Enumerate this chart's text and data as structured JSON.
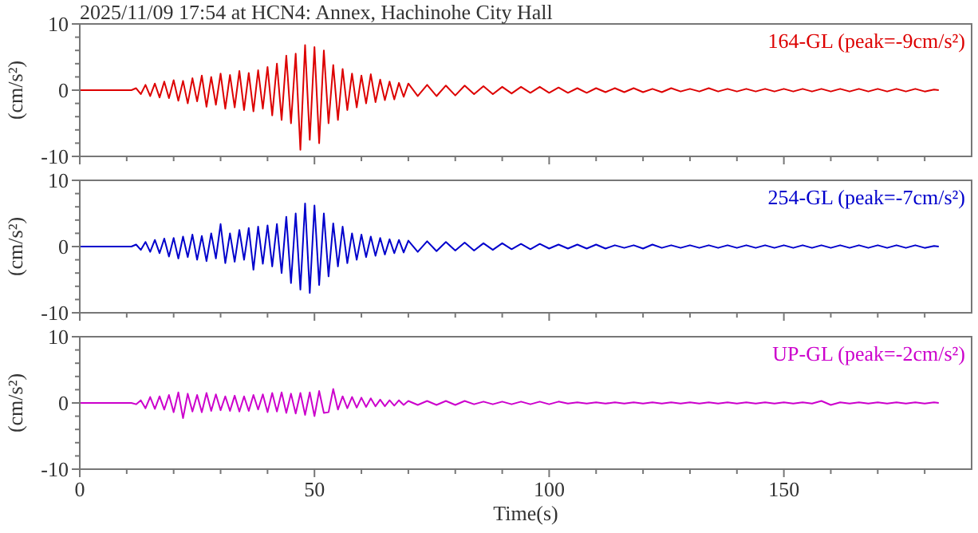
{
  "chart_data": [
    {
      "type": "line",
      "title": "2025/11/09 17:54 at HCN4: Annex, Hachinohe City Hall",
      "ylabel": "(cm/s²)",
      "tick_labels": "y",
      "x": [
        0,
        11,
        12,
        13,
        14,
        15,
        16,
        17,
        18,
        19,
        20,
        21,
        22,
        23,
        24,
        25,
        26,
        27,
        28,
        29,
        30,
        31,
        32,
        33,
        34,
        35,
        36,
        37,
        38,
        39,
        40,
        41,
        42,
        43,
        44,
        45,
        46,
        47,
        48,
        49,
        50,
        51,
        52,
        53,
        54,
        55,
        56,
        57,
        58,
        59,
        60,
        61,
        62,
        63,
        64,
        65,
        66,
        67,
        68,
        69,
        70,
        72,
        74,
        76,
        78,
        80,
        82,
        84,
        86,
        88,
        90,
        92,
        94,
        96,
        98,
        100,
        102,
        104,
        106,
        108,
        110,
        112,
        114,
        116,
        118,
        120,
        122,
        124,
        126,
        128,
        130,
        132,
        134,
        136,
        138,
        140,
        142,
        144,
        146,
        148,
        150,
        152,
        154,
        156,
        158,
        160,
        162,
        164,
        166,
        168,
        170,
        172,
        174,
        176,
        178,
        180,
        182,
        183
      ],
      "xlim": [
        0,
        190
      ],
      "ylim": [
        -10,
        10
      ],
      "xticks": [
        0,
        {
          "value": 10,
          "label": null
        },
        {
          "value": 20,
          "label": null
        },
        {
          "value": 30,
          "label": null
        },
        {
          "value": 40,
          "label": null
        },
        50,
        {
          "value": 60,
          "label": null
        },
        {
          "value": 70,
          "label": null
        },
        {
          "value": 80,
          "label": null
        },
        {
          "value": 90,
          "label": null
        },
        100,
        {
          "value": 110,
          "label": null
        },
        {
          "value": 120,
          "label": null
        },
        {
          "value": 130,
          "label": null
        },
        {
          "value": 140,
          "label": null
        },
        150,
        {
          "value": 160,
          "label": null
        },
        {
          "value": 170,
          "label": null
        },
        {
          "value": 180,
          "label": null
        }
      ],
      "yticks": [
        -10,
        {
          "value": -8,
          "label": null
        },
        {
          "value": -6,
          "label": null
        },
        {
          "value": -4,
          "label": null
        },
        {
          "value": -2,
          "label": null
        },
        0,
        {
          "value": 2,
          "label": null
        },
        {
          "value": 4,
          "label": null
        },
        {
          "value": 6,
          "label": null
        },
        {
          "value": 8,
          "label": null
        },
        10
      ],
      "series": [
        {
          "name": "164-GL (peak=-9cm/s²)",
          "color": "#dd0000",
          "values": [
            0,
            0,
            0.3,
            -0.6,
            0.8,
            -0.9,
            1.0,
            -1.1,
            1.3,
            -1.2,
            1.5,
            -1.6,
            1.4,
            -2.0,
            1.8,
            -1.7,
            2.2,
            -2.5,
            2.0,
            -2.2,
            2.5,
            -2.8,
            2.3,
            -2.6,
            2.9,
            -3.0,
            2.6,
            -3.2,
            3.0,
            -2.8,
            3.5,
            -3.8,
            4.0,
            -4.5,
            5.2,
            -5.0,
            5.5,
            -9.0,
            6.8,
            -7.5,
            6.5,
            -8.0,
            6.0,
            -5.0,
            3.8,
            -4.5,
            3.2,
            -3.0,
            2.5,
            -2.6,
            2.2,
            -2.0,
            2.4,
            -1.8,
            1.6,
            -1.5,
            1.3,
            -1.4,
            1.1,
            -1.0,
            1.0,
            -0.9,
            0.8,
            -0.9,
            0.7,
            -0.8,
            0.7,
            -0.6,
            0.6,
            -0.6,
            0.5,
            -0.5,
            0.5,
            -0.4,
            0.5,
            -0.4,
            0.4,
            -0.4,
            0.3,
            -0.4,
            0.3,
            -0.3,
            0.3,
            -0.3,
            0.3,
            -0.3,
            0.2,
            -0.3,
            0.3,
            -0.2,
            0.2,
            -0.2,
            0.3,
            -0.2,
            0.2,
            -0.2,
            0.2,
            -0.2,
            0.2,
            -0.2,
            0.2,
            -0.2,
            0.2,
            -0.2,
            0.2,
            -0.2,
            0.2,
            -0.2,
            0.2,
            -0.2,
            0.2,
            -0.2,
            0.2,
            -0.2,
            0.2,
            -0.2,
            0.1,
            0
          ]
        }
      ]
    },
    {
      "type": "line",
      "ylabel": "(cm/s²)",
      "tick_labels": "y",
      "x": [
        0,
        11,
        12,
        13,
        14,
        15,
        16,
        17,
        18,
        19,
        20,
        21,
        22,
        23,
        24,
        25,
        26,
        27,
        28,
        29,
        30,
        31,
        32,
        33,
        34,
        35,
        36,
        37,
        38,
        39,
        40,
        41,
        42,
        43,
        44,
        45,
        46,
        47,
        48,
        49,
        50,
        51,
        52,
        53,
        54,
        55,
        56,
        57,
        58,
        59,
        60,
        61,
        62,
        63,
        64,
        65,
        66,
        67,
        68,
        69,
        70,
        72,
        74,
        76,
        78,
        80,
        82,
        84,
        86,
        88,
        90,
        92,
        94,
        96,
        98,
        100,
        102,
        104,
        106,
        108,
        110,
        112,
        114,
        116,
        118,
        120,
        122,
        124,
        126,
        128,
        130,
        132,
        134,
        136,
        138,
        140,
        142,
        144,
        146,
        148,
        150,
        152,
        154,
        156,
        158,
        160,
        162,
        164,
        166,
        168,
        170,
        172,
        174,
        176,
        178,
        180,
        182,
        183
      ],
      "xlim": [
        0,
        190
      ],
      "ylim": [
        -10,
        10
      ],
      "xticks": [
        0,
        {
          "value": 10,
          "label": null
        },
        {
          "value": 20,
          "label": null
        },
        {
          "value": 30,
          "label": null
        },
        {
          "value": 40,
          "label": null
        },
        50,
        {
          "value": 60,
          "label": null
        },
        {
          "value": 70,
          "label": null
        },
        {
          "value": 80,
          "label": null
        },
        {
          "value": 90,
          "label": null
        },
        100,
        {
          "value": 110,
          "label": null
        },
        {
          "value": 120,
          "label": null
        },
        {
          "value": 130,
          "label": null
        },
        {
          "value": 140,
          "label": null
        },
        150,
        {
          "value": 160,
          "label": null
        },
        {
          "value": 170,
          "label": null
        },
        {
          "value": 180,
          "label": null
        }
      ],
      "yticks": [
        -10,
        {
          "value": -8,
          "label": null
        },
        {
          "value": -6,
          "label": null
        },
        {
          "value": -4,
          "label": null
        },
        {
          "value": -2,
          "label": null
        },
        0,
        {
          "value": 2,
          "label": null
        },
        {
          "value": 4,
          "label": null
        },
        {
          "value": 6,
          "label": null
        },
        {
          "value": 8,
          "label": null
        },
        10
      ],
      "series": [
        {
          "name": "254-GL (peak=-7cm/s²)",
          "color": "#0000cc",
          "values": [
            0,
            0,
            0.3,
            -0.5,
            0.7,
            -0.8,
            1.0,
            -1.0,
            1.2,
            -1.5,
            1.3,
            -1.8,
            1.5,
            -1.6,
            1.8,
            -2.0,
            1.6,
            -2.2,
            2.0,
            -1.8,
            3.4,
            -2.5,
            2.0,
            -2.3,
            2.5,
            -2.0,
            2.8,
            -3.5,
            3.0,
            -2.6,
            3.2,
            -3.0,
            3.4,
            -4.0,
            4.5,
            -5.5,
            5.0,
            -6.5,
            6.5,
            -7.0,
            6.2,
            -5.8,
            5.0,
            -4.5,
            3.5,
            -3.0,
            3.0,
            -2.5,
            2.0,
            -2.0,
            1.8,
            -1.6,
            1.5,
            -1.4,
            1.3,
            -1.2,
            1.1,
            -1.0,
            1.0,
            -0.9,
            0.9,
            -0.8,
            0.8,
            -0.7,
            0.7,
            -0.6,
            0.6,
            -0.6,
            0.5,
            -0.5,
            0.5,
            -0.4,
            0.4,
            -0.4,
            0.4,
            -0.3,
            0.3,
            -0.3,
            0.3,
            -0.3,
            0.3,
            -0.3,
            0.2,
            -0.2,
            0.2,
            -0.3,
            0.3,
            -0.2,
            0.2,
            -0.2,
            0.2,
            -0.2,
            0.2,
            -0.2,
            0.2,
            -0.2,
            0.2,
            -0.2,
            0.2,
            -0.2,
            0.2,
            -0.2,
            0.2,
            -0.2,
            0.2,
            -0.2,
            0.2,
            -0.2,
            0.2,
            -0.2,
            0.2,
            -0.2,
            0.2,
            -0.2,
            0.2,
            -0.2,
            0.1,
            0
          ]
        }
      ]
    },
    {
      "type": "line",
      "ylabel": "(cm/s²)",
      "xlabel": "Time(s)",
      "x": [
        0,
        11,
        12,
        13,
        14,
        15,
        16,
        17,
        18,
        19,
        20,
        21,
        22,
        23,
        24,
        25,
        26,
        27,
        28,
        29,
        30,
        31,
        32,
        33,
        34,
        35,
        36,
        37,
        38,
        39,
        40,
        41,
        42,
        43,
        44,
        45,
        46,
        47,
        48,
        49,
        50,
        51,
        52,
        53,
        54,
        55,
        56,
        57,
        58,
        59,
        60,
        61,
        62,
        63,
        64,
        65,
        66,
        67,
        68,
        69,
        70,
        72,
        74,
        76,
        78,
        80,
        82,
        84,
        86,
        88,
        90,
        92,
        94,
        96,
        98,
        100,
        102,
        104,
        106,
        108,
        110,
        112,
        114,
        116,
        118,
        120,
        122,
        124,
        126,
        128,
        130,
        132,
        134,
        136,
        138,
        140,
        142,
        144,
        146,
        148,
        150,
        152,
        154,
        156,
        158,
        160,
        162,
        164,
        166,
        168,
        170,
        172,
        174,
        176,
        178,
        180,
        182,
        183
      ],
      "xlim": [
        0,
        190
      ],
      "ylim": [
        -10,
        10
      ],
      "xticks": [
        0,
        {
          "value": 10,
          "label": null
        },
        {
          "value": 20,
          "label": null
        },
        {
          "value": 30,
          "label": null
        },
        {
          "value": 40,
          "label": null
        },
        50,
        {
          "value": 60,
          "label": null
        },
        {
          "value": 70,
          "label": null
        },
        {
          "value": 80,
          "label": null
        },
        {
          "value": 90,
          "label": null
        },
        100,
        {
          "value": 110,
          "label": null
        },
        {
          "value": 120,
          "label": null
        },
        {
          "value": 130,
          "label": null
        },
        {
          "value": 140,
          "label": null
        },
        150,
        {
          "value": 160,
          "label": null
        },
        {
          "value": 170,
          "label": null
        },
        {
          "value": 180,
          "label": null
        }
      ],
      "yticks": [
        -10,
        {
          "value": -8,
          "label": null
        },
        {
          "value": -6,
          "label": null
        },
        {
          "value": -4,
          "label": null
        },
        {
          "value": -2,
          "label": null
        },
        0,
        {
          "value": 2,
          "label": null
        },
        {
          "value": 4,
          "label": null
        },
        {
          "value": 6,
          "label": null
        },
        {
          "value": 8,
          "label": null
        },
        10
      ],
      "series": [
        {
          "name": "UP-GL (peak=-2cm/s²)",
          "color": "#cc00cc",
          "values": [
            0,
            0,
            -0.2,
            0.4,
            -0.8,
            0.9,
            -0.9,
            1.0,
            -1.0,
            1.2,
            -1.4,
            1.6,
            -2.3,
            1.4,
            -1.3,
            1.2,
            -1.4,
            1.5,
            -1.2,
            1.3,
            -1.1,
            1.0,
            -1.2,
            1.1,
            -1.3,
            1.0,
            -1.2,
            1.2,
            -1.0,
            1.3,
            -1.4,
            1.5,
            -1.3,
            1.6,
            -1.5,
            1.4,
            -1.6,
            1.5,
            -1.8,
            1.6,
            -2.0,
            1.8,
            -1.5,
            -1.4,
            2.1,
            -1.0,
            1.0,
            -0.8,
            0.9,
            -0.7,
            0.8,
            -0.6,
            0.7,
            -0.5,
            0.5,
            -0.5,
            0.4,
            -0.4,
            0.4,
            -0.3,
            0.3,
            -0.3,
            0.3,
            -0.3,
            0.3,
            -0.3,
            0.3,
            -0.2,
            0.2,
            -0.2,
            0.2,
            -0.2,
            0.2,
            -0.2,
            0.2,
            -0.2,
            0.2,
            -0.1,
            0.1,
            -0.1,
            0.1,
            -0.1,
            0.1,
            -0.1,
            0.1,
            -0.1,
            0.1,
            -0.1,
            0.1,
            -0.1,
            0.1,
            -0.1,
            0.1,
            -0.1,
            0.1,
            -0.1,
            0.1,
            -0.1,
            0.1,
            -0.1,
            0.1,
            -0.1,
            0.1,
            -0.1,
            0.3,
            -0.3,
            0.1,
            -0.1,
            0.1,
            -0.1,
            0.1,
            -0.1,
            0.1,
            -0.1,
            0.1,
            -0.1,
            0.1,
            0
          ]
        }
      ]
    }
  ]
}
